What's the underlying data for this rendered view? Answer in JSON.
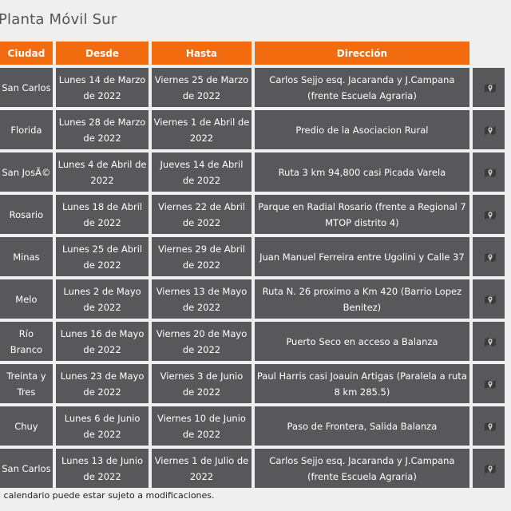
{
  "page": {
    "title": "Planta Móvil Sur",
    "footnote": "l calendario puede estar sujeto a modificaciones."
  },
  "table": {
    "headers": {
      "ciudad": "Ciudad",
      "desde": "Desde",
      "hasta": "Hasta",
      "direccion": "Dirección"
    },
    "rows": [
      {
        "ciudad": "San Carlos",
        "desde": "Lunes 14 de Marzo de 2022",
        "hasta": "Viernes 25 de Marzo de 2022",
        "direccion": "Carlos Sejjo esq. Jacaranda y J.Campana (frente Escuela Agraria)"
      },
      {
        "ciudad": "Florida",
        "desde": "Lunes 28 de Marzo de 2022",
        "hasta": "Viernes 1 de Abril de 2022",
        "direccion": "Predio de la Asociacion Rural"
      },
      {
        "ciudad": "San JosÃ©",
        "desde": "Lunes 4 de Abril de 2022",
        "hasta": "Jueves 14 de Abril de 2022",
        "direccion": "Ruta 3 km 94,800 casi Picada Varela"
      },
      {
        "ciudad": "Rosario",
        "desde": "Lunes 18 de Abril de 2022",
        "hasta": "Viernes 22 de Abril de 2022",
        "direccion": "Parque en Radial Rosario (frente a Regional 7 MTOP distrito 4)"
      },
      {
        "ciudad": "Minas",
        "desde": "Lunes 25 de Abril de 2022",
        "hasta": "Viernes 29 de Abril de 2022",
        "direccion": "Juan Manuel Ferreira entre Ugolini y Calle 37"
      },
      {
        "ciudad": "Melo",
        "desde": "Lunes 2 de Mayo de 2022",
        "hasta": "Viernes 13 de Mayo de 2022",
        "direccion": "Ruta N. 26 proximo a Km 420 (Barrio Lopez Benitez)"
      },
      {
        "ciudad": "Río Branco",
        "desde": "Lunes 16 de Mayo de 2022",
        "hasta": "Viernes 20 de Mayo de 2022",
        "direccion": "Puerto Seco en acceso a Balanza"
      },
      {
        "ciudad": "Treinta y Tres",
        "desde": "Lunes 23 de Mayo de 2022",
        "hasta": "Viernes 3 de Junio de 2022",
        "direccion": "Paul Harris casi Joauin Artigas (Paralela a ruta 8 km 285.5)"
      },
      {
        "ciudad": "Chuy",
        "desde": "Lunes 6 de Junio de 2022",
        "hasta": "Viernes 10 de Junio de 2022",
        "direccion": "Paso de Frontera, Salida Balanza"
      },
      {
        "ciudad": "San Carlos",
        "desde": "Lunes 13 de Junio de 2022",
        "hasta": "Viernes 1 de Julio de 2022",
        "direccion": "Carlos Sejjo esq. Jacaranda y J.Campana (frente Escuela Agraria)"
      }
    ]
  },
  "icons": {
    "map_link": "map-marker-icon"
  },
  "colors": {
    "header_bg": "#f26b0f",
    "cell_bg": "#58585a",
    "page_bg": "#efefef"
  }
}
